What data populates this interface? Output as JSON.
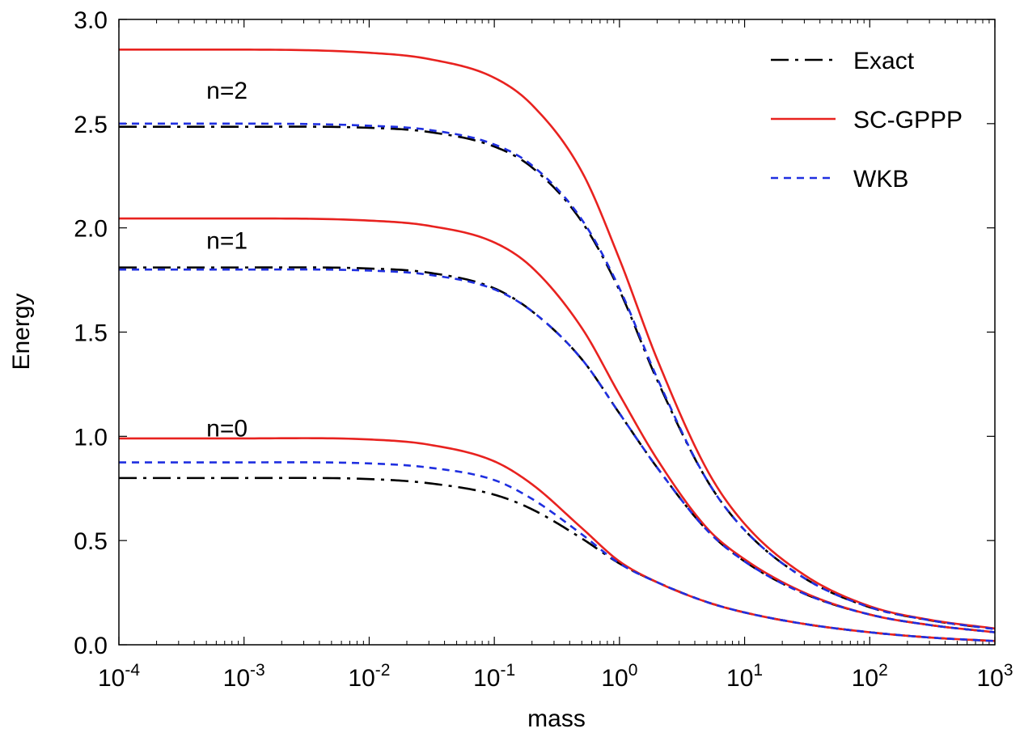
{
  "chart_data": {
    "type": "line",
    "title": "",
    "xlabel": "mass",
    "ylabel": "Energy",
    "xscale": "log",
    "xlim": [
      0.0001,
      1000
    ],
    "ylim": [
      0.0,
      3.0
    ],
    "grid": false,
    "legend_position": "top-right",
    "xticks": [
      {
        "value": 0.0001,
        "base": "10",
        "exp": "-4"
      },
      {
        "value": 0.001,
        "base": "10",
        "exp": "-3"
      },
      {
        "value": 0.01,
        "base": "10",
        "exp": "-2"
      },
      {
        "value": 0.1,
        "base": "10",
        "exp": "-1"
      },
      {
        "value": 1,
        "base": "10",
        "exp": "0"
      },
      {
        "value": 10,
        "base": "10",
        "exp": "1"
      },
      {
        "value": 100,
        "base": "10",
        "exp": "2"
      },
      {
        "value": 1000,
        "base": "10",
        "exp": "3"
      }
    ],
    "yticks": [
      {
        "value": 0.0,
        "label": "0.0"
      },
      {
        "value": 0.5,
        "label": "0.5"
      },
      {
        "value": 1.0,
        "label": "1.0"
      },
      {
        "value": 1.5,
        "label": "1.5"
      },
      {
        "value": 2.0,
        "label": "2.0"
      },
      {
        "value": 2.5,
        "label": "2.5"
      },
      {
        "value": 3.0,
        "label": "3.0"
      }
    ],
    "annotations": [
      {
        "text": "n=2",
        "x": 0.0005,
        "y": 2.62
      },
      {
        "text": "n=1",
        "x": 0.0005,
        "y": 1.9
      },
      {
        "text": "n=0",
        "x": 0.0005,
        "y": 1.0
      }
    ],
    "series": [
      {
        "name": "Exact",
        "color": "#000000",
        "style": "dashdot",
        "level": "n=2",
        "x": [
          0.0001,
          0.001,
          0.01,
          0.03,
          0.1,
          0.2,
          0.5,
          1,
          2,
          5,
          10,
          30,
          100,
          300,
          1000
        ],
        "y": [
          2.485,
          2.485,
          2.48,
          2.46,
          2.39,
          2.29,
          2.03,
          1.7,
          1.27,
          0.79,
          0.55,
          0.32,
          0.18,
          0.118,
          0.075
        ]
      },
      {
        "name": "Exact",
        "color": "#000000",
        "style": "dashdot",
        "level": "n=1",
        "x": [
          0.0001,
          0.001,
          0.01,
          0.03,
          0.1,
          0.2,
          0.5,
          1,
          2,
          5,
          10,
          30,
          100,
          300,
          1000
        ],
        "y": [
          1.81,
          1.81,
          1.805,
          1.785,
          1.71,
          1.6,
          1.37,
          1.11,
          0.85,
          0.55,
          0.4,
          0.245,
          0.145,
          0.095,
          0.06
        ]
      },
      {
        "name": "Exact",
        "color": "#000000",
        "style": "dashdot",
        "level": "n=0",
        "x": [
          0.0001,
          0.001,
          0.01,
          0.03,
          0.1,
          0.2,
          0.5,
          1,
          2,
          5,
          10,
          30,
          100,
          300,
          1000
        ],
        "y": [
          0.8,
          0.8,
          0.795,
          0.775,
          0.72,
          0.65,
          0.51,
          0.39,
          0.3,
          0.205,
          0.155,
          0.1,
          0.06,
          0.035,
          0.018
        ]
      },
      {
        "name": "SC-GPPP",
        "color": "#e8221f",
        "style": "solid",
        "level": "n=2",
        "x": [
          0.0001,
          0.001,
          0.01,
          0.03,
          0.1,
          0.2,
          0.5,
          1,
          2,
          5,
          10,
          30,
          100,
          300,
          1000
        ],
        "y": [
          2.855,
          2.855,
          2.84,
          2.81,
          2.72,
          2.59,
          2.27,
          1.85,
          1.37,
          0.84,
          0.58,
          0.335,
          0.185,
          0.12,
          0.078
        ]
      },
      {
        "name": "SC-GPPP",
        "color": "#e8221f",
        "style": "solid",
        "level": "n=1",
        "x": [
          0.0001,
          0.001,
          0.01,
          0.03,
          0.1,
          0.2,
          0.5,
          1,
          2,
          5,
          10,
          30,
          100,
          300,
          1000
        ],
        "y": [
          2.045,
          2.045,
          2.035,
          2.01,
          1.93,
          1.81,
          1.52,
          1.2,
          0.89,
          0.56,
          0.41,
          0.25,
          0.145,
          0.095,
          0.06
        ]
      },
      {
        "name": "SC-GPPP",
        "color": "#e8221f",
        "style": "solid",
        "level": "n=0",
        "x": [
          0.0001,
          0.001,
          0.01,
          0.03,
          0.1,
          0.2,
          0.5,
          1,
          2,
          5,
          10,
          30,
          100,
          300,
          1000
        ],
        "y": [
          0.99,
          0.99,
          0.985,
          0.96,
          0.88,
          0.77,
          0.56,
          0.4,
          0.3,
          0.205,
          0.155,
          0.1,
          0.06,
          0.035,
          0.018
        ]
      },
      {
        "name": "WKB",
        "color": "#1f2fe0",
        "style": "dashed",
        "level": "n=2",
        "x": [
          0.0001,
          0.001,
          0.01,
          0.03,
          0.1,
          0.2,
          0.5,
          1,
          2,
          5,
          10,
          30,
          100,
          300,
          1000
        ],
        "y": [
          2.5,
          2.5,
          2.49,
          2.47,
          2.4,
          2.3,
          2.04,
          1.71,
          1.28,
          0.79,
          0.55,
          0.32,
          0.18,
          0.118,
          0.075
        ]
      },
      {
        "name": "WKB",
        "color": "#1f2fe0",
        "style": "dashed",
        "level": "n=1",
        "x": [
          0.0001,
          0.001,
          0.01,
          0.03,
          0.1,
          0.2,
          0.5,
          1,
          2,
          5,
          10,
          30,
          100,
          300,
          1000
        ],
        "y": [
          1.8,
          1.8,
          1.795,
          1.775,
          1.705,
          1.6,
          1.37,
          1.11,
          0.85,
          0.55,
          0.4,
          0.245,
          0.145,
          0.095,
          0.06
        ]
      },
      {
        "name": "WKB",
        "color": "#1f2fe0",
        "style": "dashed",
        "level": "n=0",
        "x": [
          0.0001,
          0.001,
          0.01,
          0.03,
          0.1,
          0.2,
          0.5,
          1,
          2,
          5,
          10,
          30,
          100,
          300,
          1000
        ],
        "y": [
          0.875,
          0.875,
          0.87,
          0.85,
          0.79,
          0.7,
          0.53,
          0.39,
          0.3,
          0.205,
          0.155,
          0.1,
          0.06,
          0.035,
          0.018
        ]
      }
    ],
    "legend": [
      {
        "label": "Exact",
        "color": "#000000",
        "style": "dashdot"
      },
      {
        "label": "SC-GPPP",
        "color": "#e8221f",
        "style": "solid"
      },
      {
        "label": "WKB",
        "color": "#1f2fe0",
        "style": "dashed"
      }
    ]
  }
}
